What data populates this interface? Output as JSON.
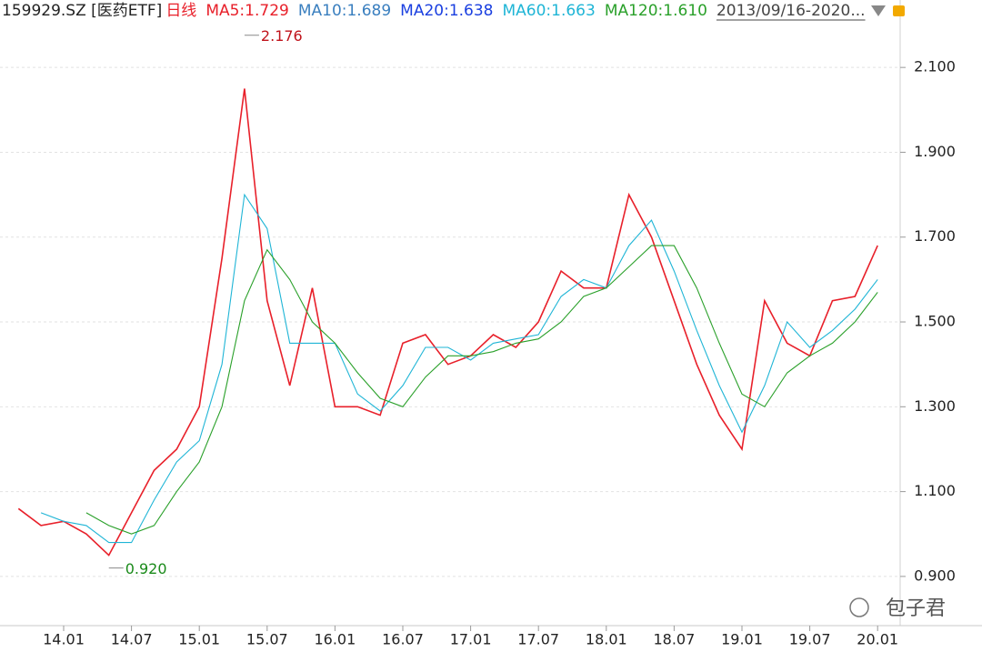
{
  "chart_data": {
    "type": "line",
    "header": [
      {
        "text": "159929.SZ [医药ETF]",
        "color": "#222222"
      },
      {
        "text": "日线",
        "color": "#e8202a"
      },
      {
        "text": "MA5:1.729",
        "color": "#e8202a"
      },
      {
        "text": "MA10:1.689",
        "color": "#3a7fbf"
      },
      {
        "text": "MA20:1.638",
        "color": "#1a3fe0"
      },
      {
        "text": "MA60:1.663",
        "color": "#1fb5d6"
      },
      {
        "text": "MA120:1.610",
        "color": "#2aa02a"
      },
      {
        "text": "2013/09/16-2020...",
        "color": "#444444"
      }
    ],
    "categories": [
      null,
      null,
      "14.01",
      null,
      null,
      "14.07",
      null,
      null,
      "15.01",
      null,
      null,
      "15.07",
      null,
      null,
      "16.01",
      null,
      null,
      "16.07",
      null,
      null,
      "17.01",
      null,
      null,
      "17.07",
      null,
      null,
      "18.01",
      null,
      null,
      "18.07",
      null,
      null,
      "19.01",
      null,
      null,
      "19.07",
      null,
      null,
      "20.01"
    ],
    "series": [
      {
        "color": "#e8202a",
        "values": [
          1.06,
          1.02,
          1.03,
          1.0,
          0.95,
          1.05,
          1.15,
          1.2,
          1.3,
          1.65,
          2.05,
          1.55,
          1.35,
          1.58,
          1.3,
          1.3,
          1.28,
          1.45,
          1.47,
          1.4,
          1.42,
          1.47,
          1.44,
          1.5,
          1.62,
          1.58,
          1.58,
          1.8,
          1.7,
          1.55,
          1.4,
          1.28,
          1.2,
          1.55,
          1.45,
          1.42,
          1.55,
          1.56,
          1.68
        ]
      },
      {
        "color": "#1fb5d6",
        "values": [
          null,
          1.05,
          1.03,
          1.02,
          0.98,
          0.98,
          1.08,
          1.17,
          1.22,
          1.4,
          1.8,
          1.72,
          1.45,
          1.45,
          1.45,
          1.33,
          1.29,
          1.35,
          1.44,
          1.44,
          1.41,
          1.45,
          1.46,
          1.47,
          1.56,
          1.6,
          1.58,
          1.68,
          1.74,
          1.62,
          1.48,
          1.35,
          1.24,
          1.35,
          1.5,
          1.44,
          1.48,
          1.53,
          1.6
        ]
      },
      {
        "color": "#2aa02a",
        "values": [
          null,
          null,
          null,
          1.05,
          1.02,
          1.0,
          1.02,
          1.1,
          1.17,
          1.3,
          1.55,
          1.67,
          1.6,
          1.5,
          1.45,
          1.38,
          1.32,
          1.3,
          1.37,
          1.42,
          1.42,
          1.43,
          1.45,
          1.46,
          1.5,
          1.56,
          1.58,
          1.63,
          1.68,
          1.68,
          1.58,
          1.45,
          1.33,
          1.3,
          1.38,
          1.42,
          1.45,
          1.5,
          1.57
        ]
      }
    ],
    "annotations": [
      {
        "value": 2.176,
        "label": "2.176",
        "color": "#c0131b",
        "at": "max"
      },
      {
        "value": 0.92,
        "label": "0.920",
        "color": "#1a8a1a",
        "at": "min"
      }
    ],
    "ylim": [
      0.784,
      2.259
    ],
    "yticks": [
      {
        "value": 0.9,
        "label": "0.900"
      },
      {
        "value": 1.1,
        "label": "1.100"
      },
      {
        "value": 1.3,
        "label": "1.300"
      },
      {
        "value": 1.5,
        "label": "1.500"
      },
      {
        "value": 1.7,
        "label": "1.700"
      },
      {
        "value": 1.9,
        "label": "1.900"
      },
      {
        "value": 2.1,
        "label": "2.100"
      }
    ],
    "grid": true,
    "watermark": "包子君"
  }
}
